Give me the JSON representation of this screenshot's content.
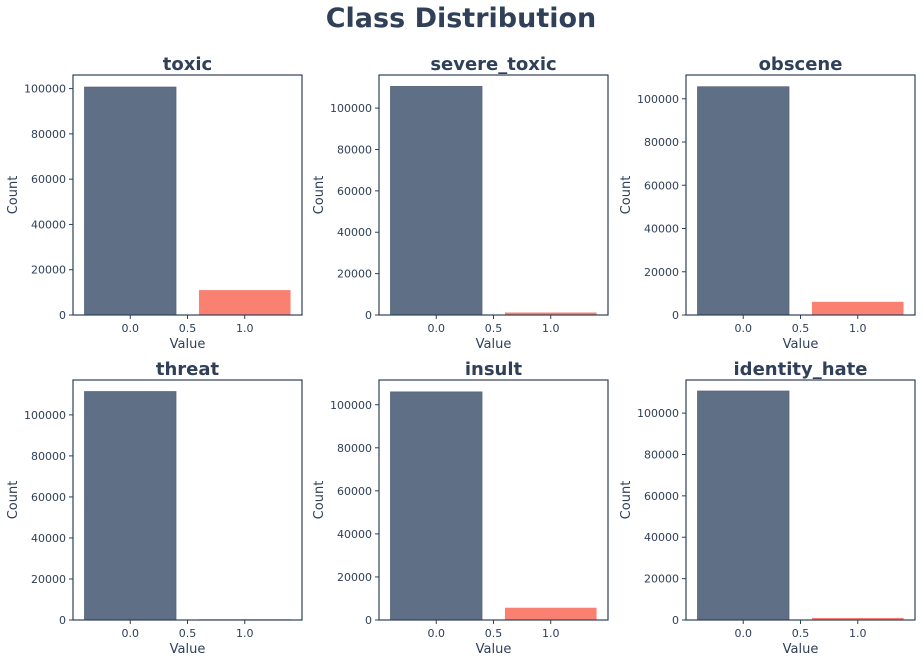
{
  "title": "Class Distribution",
  "colors": {
    "class0": "#5f6f85",
    "class1": "#fa8072",
    "text": "#2f4058",
    "axis": "#2f4058"
  },
  "chart_data": [
    {
      "type": "bar",
      "title": "toxic",
      "xlabel": "Value",
      "ylabel": "Count",
      "categories": [
        "0.0",
        "1.0"
      ],
      "x": [
        0.0,
        1.0
      ],
      "values": [
        100700,
        11000
      ],
      "xlim": [
        -0.5,
        1.5
      ],
      "ylim": [
        0,
        106000
      ],
      "xticks": [
        "0.0",
        "0.5",
        "1.0"
      ],
      "yticks": [
        0,
        20000,
        40000,
        60000,
        80000,
        100000
      ]
    },
    {
      "type": "bar",
      "title": "severe_toxic",
      "xlabel": "Value",
      "ylabel": "Count",
      "categories": [
        "0.0",
        "1.0"
      ],
      "x": [
        0.0,
        1.0
      ],
      "values": [
        110500,
        1200
      ],
      "xlim": [
        -0.5,
        1.5
      ],
      "ylim": [
        0,
        116000
      ],
      "xticks": [
        "0.0",
        "0.5",
        "1.0"
      ],
      "yticks": [
        0,
        20000,
        40000,
        60000,
        80000,
        100000
      ]
    },
    {
      "type": "bar",
      "title": "obscene",
      "xlabel": "Value",
      "ylabel": "Count",
      "categories": [
        "0.0",
        "1.0"
      ],
      "x": [
        0.0,
        1.0
      ],
      "values": [
        105600,
        6100
      ],
      "xlim": [
        -0.5,
        1.5
      ],
      "ylim": [
        0,
        111000
      ],
      "xticks": [
        "0.0",
        "0.5",
        "1.0"
      ],
      "yticks": [
        0,
        20000,
        40000,
        60000,
        80000,
        100000
      ]
    },
    {
      "type": "bar",
      "title": "threat",
      "xlabel": "Value",
      "ylabel": "Count",
      "categories": [
        "0.0",
        "1.0"
      ],
      "x": [
        0.0,
        1.0
      ],
      "values": [
        111400,
        350
      ],
      "xlim": [
        -0.5,
        1.5
      ],
      "ylim": [
        0,
        117000
      ],
      "xticks": [
        "0.0",
        "0.5",
        "1.0"
      ],
      "yticks": [
        0,
        20000,
        40000,
        60000,
        80000,
        100000
      ]
    },
    {
      "type": "bar",
      "title": "insult",
      "xlabel": "Value",
      "ylabel": "Count",
      "categories": [
        "0.0",
        "1.0"
      ],
      "x": [
        0.0,
        1.0
      ],
      "values": [
        106000,
        5700
      ],
      "xlim": [
        -0.5,
        1.5
      ],
      "ylim": [
        0,
        111500
      ],
      "xticks": [
        "0.0",
        "0.5",
        "1.0"
      ],
      "yticks": [
        0,
        20000,
        40000,
        60000,
        80000,
        100000
      ]
    },
    {
      "type": "bar",
      "title": "identity_hate",
      "xlabel": "Value",
      "ylabel": "Count",
      "categories": [
        "0.0",
        "1.0"
      ],
      "x": [
        0.0,
        1.0
      ],
      "values": [
        110700,
        1000
      ],
      "xlim": [
        -0.5,
        1.5
      ],
      "ylim": [
        0,
        116000
      ],
      "xticks": [
        "0.0",
        "0.5",
        "1.0"
      ],
      "yticks": [
        0,
        20000,
        40000,
        60000,
        80000,
        100000
      ]
    }
  ]
}
